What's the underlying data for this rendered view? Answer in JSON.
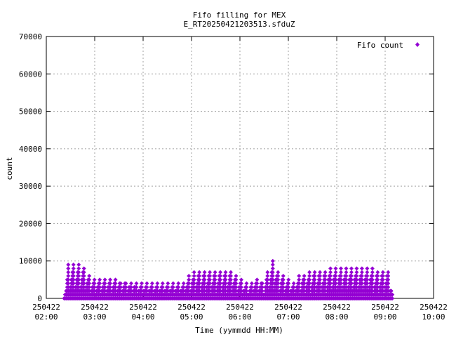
{
  "chart_data": {
    "type": "scatter",
    "title": "Fifo filling for MEX",
    "subtitle": "E_RT20250421203513.sfduZ",
    "xlabel": "Time (yymmdd HH:MM)",
    "ylabel": "count",
    "xlim": [
      "2025-04-22 02:00",
      "2025-04-22 10:00"
    ],
    "ylim": [
      0,
      70000
    ],
    "y_ticks": [
      "0",
      "10000",
      "20000",
      "30000",
      "40000",
      "50000",
      "60000",
      "70000"
    ],
    "x_ticks": [
      {
        "date": "250422",
        "time": "02:00"
      },
      {
        "date": "250422",
        "time": "03:00"
      },
      {
        "date": "250422",
        "time": "04:00"
      },
      {
        "date": "250422",
        "time": "05:00"
      },
      {
        "date": "250422",
        "time": "06:00"
      },
      {
        "date": "250422",
        "time": "07:00"
      },
      {
        "date": "250422",
        "time": "08:00"
      },
      {
        "date": "250422",
        "time": "09:00"
      },
      {
        "date": "250422",
        "time": "10:00"
      }
    ],
    "grid": true,
    "legend_position": "top-right",
    "series": [
      {
        "name": "Fifo count",
        "color": "#9400d3",
        "marker": "diamond",
        "points_start": "2025-04-22 02:22",
        "points_end": "2025-04-22 09:10",
        "envelope": [
          {
            "t": "02:22",
            "max": 0
          },
          {
            "t": "02:27",
            "max": 9000
          },
          {
            "t": "02:45",
            "max": 9000
          },
          {
            "t": "02:52",
            "max": 7000
          },
          {
            "t": "03:00",
            "max": 5200
          },
          {
            "t": "03:30",
            "max": 5000
          },
          {
            "t": "04:00",
            "max": 4700
          },
          {
            "t": "04:30",
            "max": 4600
          },
          {
            "t": "04:50",
            "max": 4800
          },
          {
            "t": "05:00",
            "max": 7000
          },
          {
            "t": "05:10",
            "max": 7500
          },
          {
            "t": "05:20",
            "max": 7800
          },
          {
            "t": "05:50",
            "max": 7800
          },
          {
            "t": "06:00",
            "max": 5500
          },
          {
            "t": "06:10",
            "max": 4000
          },
          {
            "t": "06:25",
            "max": 5800
          },
          {
            "t": "06:30",
            "max": 4000
          },
          {
            "t": "06:35",
            "max": 8000
          },
          {
            "t": "06:42",
            "max": 10600
          },
          {
            "t": "06:48",
            "max": 7000
          },
          {
            "t": "07:00",
            "max": 5600
          },
          {
            "t": "07:05",
            "max": 4000
          },
          {
            "t": "07:15",
            "max": 6500
          },
          {
            "t": "07:30",
            "max": 7700
          },
          {
            "t": "08:00",
            "max": 8200
          },
          {
            "t": "08:30",
            "max": 8200
          },
          {
            "t": "09:00",
            "max": 7800
          },
          {
            "t": "09:05",
            "max": 7000
          },
          {
            "t": "09:10",
            "max": 0
          }
        ]
      }
    ]
  }
}
